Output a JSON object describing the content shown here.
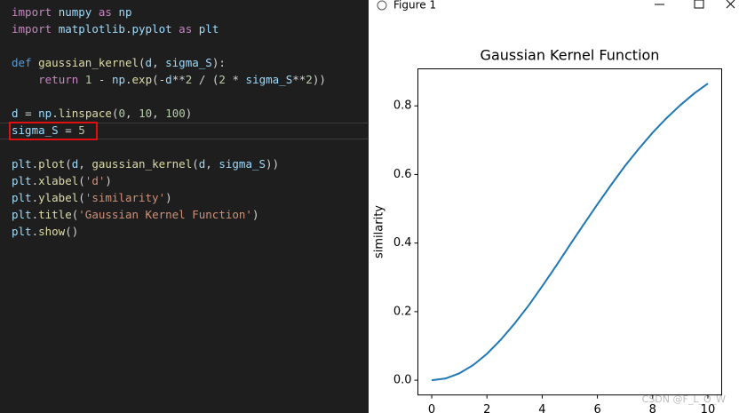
{
  "editor": {
    "lines": [
      "import numpy as np",
      "import matplotlib.pyplot as plt",
      null,
      "def gaussian_kernel(d, sigma_S):",
      "    return 1 - np.exp(-d**2 / (2 * sigma_S**2))",
      null,
      "d = np.linspace(0, 10, 100)",
      "sigma_S = 5",
      null,
      "plt.plot(d, gaussian_kernel(d, sigma_S))",
      "plt.xlabel('d')",
      "plt.ylabel('similarity')",
      "plt.title('Gaussian Kernel Function')",
      "plt.show()"
    ]
  },
  "window": {
    "title": "Figure 1"
  },
  "watermark": "CSDN @F_L_O_W",
  "chart_data": {
    "type": "line",
    "title": "Gaussian Kernel Function",
    "y_label": "similarity",
    "x": [
      0,
      0.5,
      1,
      1.5,
      2,
      2.5,
      3,
      3.5,
      4,
      4.5,
      5,
      5.5,
      6,
      6.5,
      7,
      7.5,
      8,
      8.5,
      9,
      9.5,
      10
    ],
    "series": [
      {
        "color": "#1f77b4",
        "values": [
          0,
          0.005,
          0.02,
          0.044,
          0.077,
          0.118,
          0.165,
          0.217,
          0.274,
          0.333,
          0.394,
          0.454,
          0.513,
          0.57,
          0.625,
          0.675,
          0.722,
          0.764,
          0.802,
          0.836,
          0.865
        ]
      }
    ],
    "xlim": [
      -0.5,
      10.5
    ],
    "xticks": [
      0,
      2,
      4,
      6,
      8,
      10
    ],
    "ylim": [
      -0.043,
      0.908
    ],
    "yticks": [
      {
        "value": 0,
        "label": "0.0"
      },
      0.2,
      0.4,
      0.6,
      0.8
    ]
  }
}
